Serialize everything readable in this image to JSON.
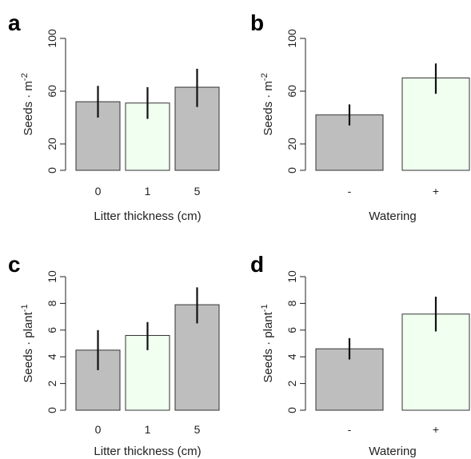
{
  "chart_data": [
    {
      "type": "bar",
      "panel": "a",
      "categories": [
        "0",
        "1",
        "5"
      ],
      "values": [
        52,
        51,
        63
      ],
      "errors": [
        [
          40,
          64
        ],
        [
          39,
          63
        ],
        [
          48,
          77
        ]
      ],
      "colors": [
        "#bebebe",
        "#f0fff0",
        "#bebebe"
      ],
      "xlabel": "Litter thickness (cm)",
      "ylabel": "Seeds · m⁻²",
      "ylim": [
        0,
        100
      ],
      "yticks": [
        "0",
        "20",
        "60",
        "100"
      ]
    },
    {
      "type": "bar",
      "panel": "b",
      "categories": [
        "-",
        "+"
      ],
      "values": [
        42,
        70
      ],
      "errors": [
        [
          34,
          50
        ],
        [
          58,
          81
        ]
      ],
      "colors": [
        "#bebebe",
        "#f0fff0"
      ],
      "xlabel": "Watering",
      "ylabel": "Seeds · m⁻²",
      "ylim": [
        0,
        100
      ],
      "yticks": [
        "0",
        "20",
        "60",
        "100"
      ]
    },
    {
      "type": "bar",
      "panel": "c",
      "categories": [
        "0",
        "1",
        "5"
      ],
      "values": [
        4.5,
        5.6,
        7.9
      ],
      "errors": [
        [
          3.0,
          6.0
        ],
        [
          4.5,
          6.6
        ],
        [
          6.5,
          9.2
        ]
      ],
      "colors": [
        "#bebebe",
        "#f0fff0",
        "#bebebe"
      ],
      "xlabel": "Litter thickness (cm)",
      "ylabel": "Seeds · plant⁻¹",
      "ylim": [
        0,
        10
      ],
      "yticks": [
        "0",
        "2",
        "4",
        "6",
        "8",
        "10"
      ]
    },
    {
      "type": "bar",
      "panel": "d",
      "categories": [
        "-",
        "+"
      ],
      "values": [
        4.6,
        7.2
      ],
      "errors": [
        [
          3.8,
          5.4
        ],
        [
          5.9,
          8.5
        ]
      ],
      "colors": [
        "#bebebe",
        "#f0fff0"
      ],
      "xlabel": "Watering",
      "ylabel": "Seeds · plant⁻¹",
      "ylim": [
        0,
        10
      ],
      "yticks": [
        "0",
        "2",
        "4",
        "6",
        "8",
        "10"
      ]
    }
  ]
}
